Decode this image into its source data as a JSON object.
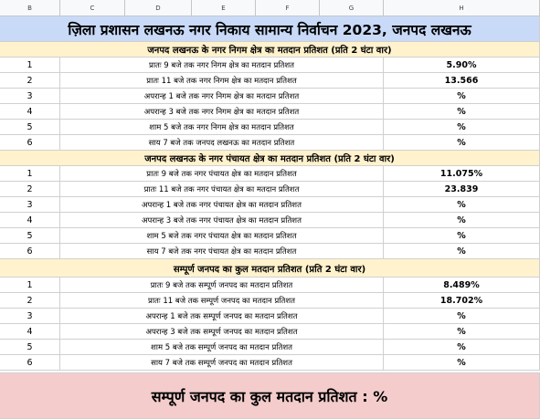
{
  "column_headers": [
    "B",
    "C",
    "D",
    "E",
    "F",
    "G",
    "H"
  ],
  "title": "ज़िला प्रशासन लखनऊ नगर निकाय सामान्य निर्वाचन 2023, जनपद लखनऊ",
  "sections": [
    {
      "header": "जनपद लखनऊ के नगर निगम क्षेत्र का मतदान प्रतिशत (प्रति 2 घंटा वार)",
      "rows": [
        [
          1,
          "प्रातः 9 बजे तक नगर निगम क्षेत्र का मतदान प्रतिशत",
          "5.90%"
        ],
        [
          2,
          "प्रातः 11 बजे तक नगर निगम क्षेत्र का मतदान प्रतिशत",
          "13.566"
        ],
        [
          3,
          "अपरान्ह 1 बजे तक नगर निगम क्षेत्र का मतदान प्रतिशत",
          "%"
        ],
        [
          4,
          "अपरान्ह 3 बजे तक नगर निगम क्षेत्र का मतदान प्रतिशत",
          "%"
        ],
        [
          5,
          "शाम 5 बजे तक नगर निगम क्षेत्र का मतदान प्रतिशत",
          "%"
        ],
        [
          6,
          "साय 7 बजे तक जनपद लखनऊ का मतदान प्रतिशत",
          "%"
        ]
      ]
    },
    {
      "header": "जनपद लखनऊ के नगर पंचायत क्षेत्र का मतदान प्रतिशत (प्रति 2 घंटा वार)",
      "rows": [
        [
          1,
          "प्रातः 9 बजे तक नगर पंचायत क्षेत्र का मतदान प्रतिशत",
          "11.075%"
        ],
        [
          2,
          "प्रातः 11 बजे तक नगर पंचायत क्षेत्र का मतदान प्रतिशत",
          "23.839"
        ],
        [
          3,
          "अपरान्ह 1 बजे तक नगर पंचायत क्षेत्र का मतदान प्रतिशत",
          "%"
        ],
        [
          4,
          "अपरान्ह 3 बजे तक नगर पंचायत क्षेत्र का मतदान प्रतिशत",
          "%"
        ],
        [
          5,
          "शाम 5 बजे तक नगर पंचायत क्षेत्र का मतदान प्रतिशत",
          "%"
        ],
        [
          6,
          "साय 7 बजे तक नगर पंचायत क्षेत्र का मतदान प्रतिशत",
          "%"
        ]
      ]
    },
    {
      "header": "सम्पूर्ण जनपद का कुल मतदान प्रतिशत (प्रति 2 घंटा वार)",
      "rows": [
        [
          1,
          "प्रातः 9 बजे तक सम्पूर्ण जनपद का मतदान प्रतिशत",
          "8.489%"
        ],
        [
          2,
          "प्रातः 11 बजे तक सम्पूर्ण जनपद का मतदान प्रतिशत",
          "18.702%"
        ],
        [
          3,
          "अपरान्ह 1 बजे तक सम्पूर्ण जनपद का मतदान प्रतिशत",
          "%"
        ],
        [
          4,
          "अपरान्ह 3 बजे तक सम्पूर्ण जनपद का मतदान प्रतिशत",
          "%"
        ],
        [
          5,
          "शाम 5 बजे तक सम्पूर्ण जनपद का मतदान प्रतिशत",
          "%"
        ],
        [
          6,
          "साय 7 बजे तक सम्पूर्ण जनपद का मतदान प्रतिशत",
          "%"
        ]
      ]
    }
  ],
  "footer": "सम्पूर्ण जनपद का कुल मतदान प्रतिशत : %"
}
